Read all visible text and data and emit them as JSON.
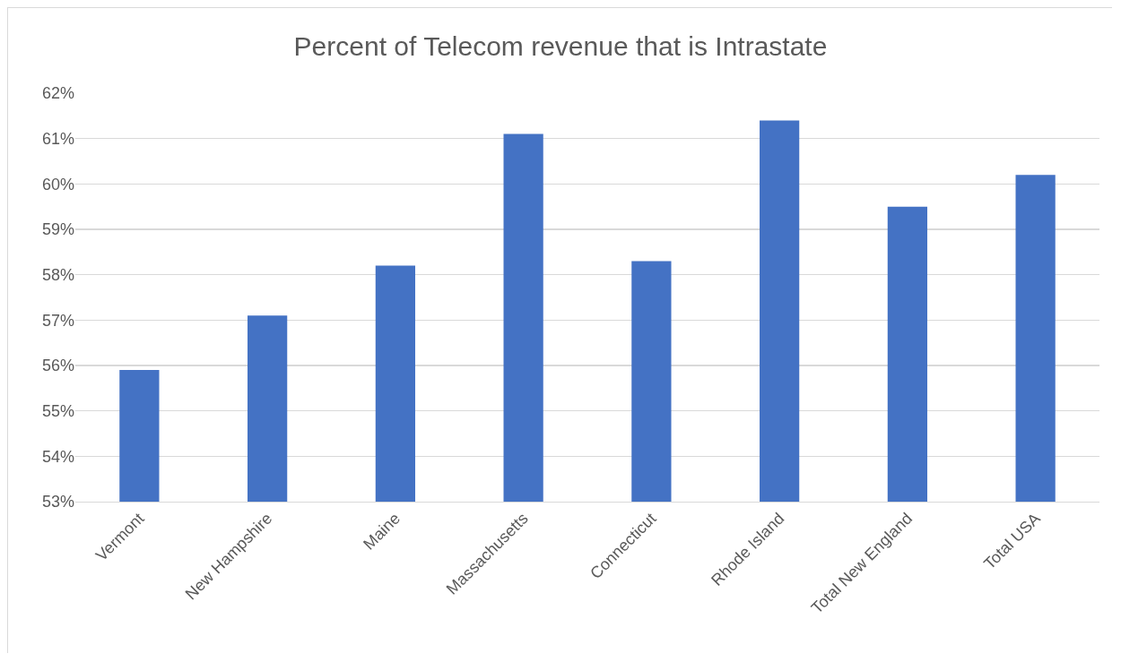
{
  "chart_data": {
    "type": "bar",
    "title": "Percent of Telecom revenue that is Intrastate",
    "categories": [
      "Vermont",
      "New Hampshire",
      "Maine",
      "Massachusetts",
      "Connecticut",
      "Rhode Island",
      "Total New England",
      "Total USA"
    ],
    "values": [
      55.9,
      57.1,
      58.2,
      61.1,
      58.3,
      61.4,
      59.5,
      60.2
    ],
    "color": "#4472c4",
    "ylim": [
      53,
      62
    ],
    "yticks": [
      {
        "value": 53,
        "label": "53%"
      },
      {
        "value": 54,
        "label": "54%"
      },
      {
        "value": 55,
        "label": "55%"
      },
      {
        "value": 56,
        "label": "56%"
      },
      {
        "value": 57,
        "label": "57%"
      },
      {
        "value": 58,
        "label": "58%"
      },
      {
        "value": 59,
        "label": "59%"
      },
      {
        "value": 60,
        "label": "60%"
      },
      {
        "value": 61,
        "label": "61%"
      },
      {
        "value": 62,
        "label": "62%"
      }
    ],
    "grid": "y"
  }
}
